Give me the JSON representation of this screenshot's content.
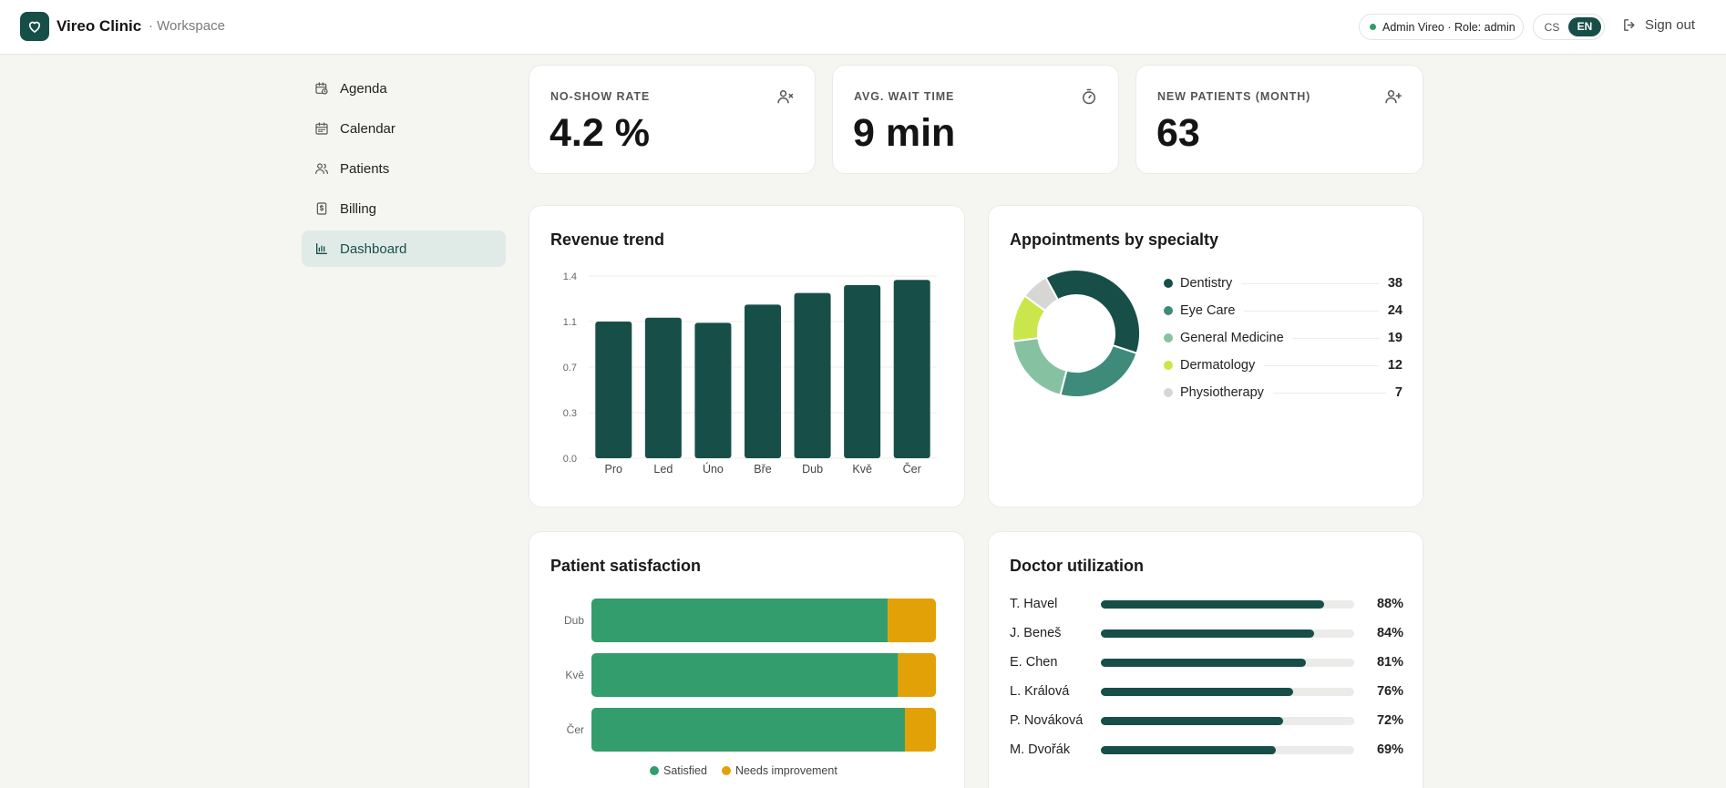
{
  "header": {
    "brand": "Vireo Clinic",
    "workspace": "· Workspace",
    "user_badge": "Admin Vireo · Role: admin",
    "lang_options": [
      "CS",
      "EN"
    ],
    "active_lang": "EN",
    "sign_out": "Sign out"
  },
  "sidebar": {
    "items": [
      {
        "label": "Agenda",
        "icon": "clock-calendar-icon"
      },
      {
        "label": "Calendar",
        "icon": "calendar-icon"
      },
      {
        "label": "Patients",
        "icon": "users-icon"
      },
      {
        "label": "Billing",
        "icon": "receipt-icon"
      },
      {
        "label": "Dashboard",
        "icon": "bar-chart-icon",
        "active": true
      }
    ]
  },
  "kpis": [
    {
      "label": "NO-SHOW RATE",
      "value": "4.2 %",
      "icon": "user-x-icon"
    },
    {
      "label": "AVG. WAIT TIME",
      "value": "9 min",
      "icon": "timer-icon"
    },
    {
      "label": "NEW PATIENTS (MONTH)",
      "value": "63",
      "icon": "user-plus-icon"
    }
  ],
  "colors": {
    "primary": "#174f48",
    "satisfied": "#339d6d",
    "needs_improvement": "#e2a106"
  },
  "revenue": {
    "title": "Revenue trend",
    "chart_data": {
      "type": "bar",
      "categories": [
        "Pro",
        "Led",
        "Úno",
        "Bře",
        "Dub",
        "Kvě",
        "Čer"
      ],
      "values": [
        1.05,
        1.08,
        1.04,
        1.18,
        1.27,
        1.33,
        1.37
      ],
      "yticks": [
        "0.0",
        "0.3",
        "0.7",
        "1.1",
        "1.4"
      ],
      "ytick_values": [
        0,
        0.35,
        0.7,
        1.05,
        1.4
      ],
      "ylim": [
        0,
        1.4
      ],
      "xlabel": "",
      "ylabel": "",
      "grid": true
    }
  },
  "specialty": {
    "title": "Appointments by specialty",
    "chart_data": {
      "type": "pie",
      "categories": [
        "Dentistry",
        "Eye Care",
        "General Medicine",
        "Dermatology",
        "Physiotherapy"
      ],
      "values": [
        38,
        24,
        19,
        12,
        7
      ],
      "colors": [
        "#174f48",
        "#3f8b7b",
        "#86c2a2",
        "#c9e64a",
        "#d6d6d4"
      ],
      "legend": "right"
    }
  },
  "satisfaction": {
    "title": "Patient satisfaction",
    "chart_data": {
      "type": "bar",
      "orientation": "horizontal",
      "stacked": true,
      "categories": [
        "Dub",
        "Kvě",
        "Čer"
      ],
      "series": [
        {
          "name": "Satisfied",
          "values": [
            86,
            89,
            91
          ]
        },
        {
          "name": "Needs improvement",
          "values": [
            14,
            11,
            9
          ]
        }
      ],
      "legend": "bottom"
    }
  },
  "utilization": {
    "title": "Doctor utilization",
    "rows": [
      {
        "name": "T. Havel",
        "value": 88,
        "label": "88%"
      },
      {
        "name": "J. Beneš",
        "value": 84,
        "label": "84%"
      },
      {
        "name": "E. Chen",
        "value": 81,
        "label": "81%"
      },
      {
        "name": "L. Králová",
        "value": 76,
        "label": "76%"
      },
      {
        "name": "P. Nováková",
        "value": 72,
        "label": "72%"
      },
      {
        "name": "M. Dvořák",
        "value": 69,
        "label": "69%"
      }
    ]
  }
}
